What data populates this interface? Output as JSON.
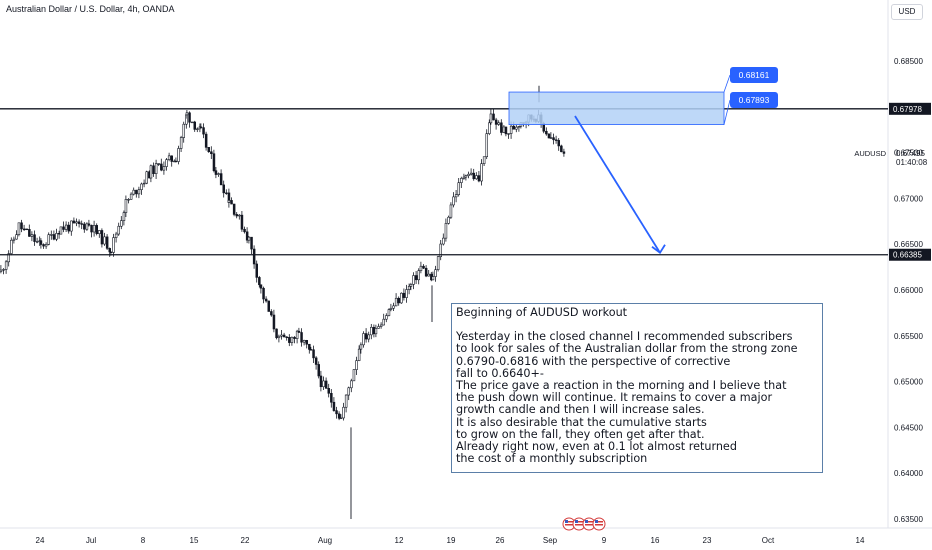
{
  "header": {
    "title": "Australian Dollar / U.S. Dollar, 4h, OANDA",
    "currency_label": "USD"
  },
  "price_axis": {
    "ticks": [
      "0.68500",
      "0.68000",
      "0.67500",
      "0.67000",
      "0.66500",
      "0.66000",
      "0.65500",
      "0.65000",
      "0.64500",
      "0.64000",
      "0.63500"
    ],
    "level_labels": [
      {
        "name": "upper-level",
        "value": 0.67978,
        "label": "0.67978"
      },
      {
        "name": "lower-level",
        "value": 0.66385,
        "label": "0.66385"
      }
    ],
    "current": {
      "symbol": "AUDUSD",
      "price": "0.67495",
      "countdown": "01:40:08"
    }
  },
  "time_axis": {
    "ticks": [
      "24",
      "Jul",
      "8",
      "15",
      "22",
      "Aug",
      "12",
      "19",
      "26",
      "Sep",
      "9",
      "16",
      "23",
      "Oct",
      "14"
    ]
  },
  "zone": {
    "top_label": "0.68161",
    "bottom_label": "0.67893",
    "top_value": 0.68161,
    "bottom_value": 0.67893,
    "fill_color": "#b3d1f7",
    "label_color": "#2962ff"
  },
  "note": {
    "title": "Beginning of AUDUSD workout",
    "lines": [
      "Yesterday in the closed channel I recommended subscribers",
      "to look for sales of the Australian dollar from the strong zone",
      "0.6790-0.6816 with the perspective of corrective",
      "fall to 0.6640+-",
      "The price gave a reaction in the morning and I believe that",
      "the push down will continue. It remains to cover a major",
      "growth candle and then I will increase sales.",
      "It is also desirable that the cumulative starts",
      "to grow on the fall, they often get after that.",
      "Already right now, even at 0.1 lot almost returned",
      "the cost of a monthly subscription"
    ]
  },
  "colors": {
    "candles": "#131722",
    "level_lines": "#131722",
    "arrow": "#2962ff"
  },
  "chart_data": {
    "type": "candlestick",
    "title": "Australian Dollar / U.S. Dollar, 4h, OANDA",
    "symbol": "AUDUSD",
    "timeframe": "4h",
    "ylim": [
      0.6345,
      0.6875
    ],
    "x_ticks": [
      "24",
      "Jul",
      "8",
      "15",
      "22",
      "Aug",
      "12",
      "19",
      "26",
      "Sep",
      "9",
      "16",
      "23",
      "Oct",
      "14"
    ],
    "horizontal_levels": [
      0.67978,
      0.66385
    ],
    "zone": [
      0.67893,
      0.68161
    ],
    "arrow": {
      "from": 0.679,
      "to": 0.66385
    },
    "close_path": [
      {
        "date": "Jun 20",
        "close": 0.662
      },
      {
        "date": "Jun 22",
        "close": 0.667
      },
      {
        "date": "Jun 26",
        "close": 0.6648
      },
      {
        "date": "Jun 28",
        "close": 0.6668
      },
      {
        "date": "Jul 1",
        "close": 0.6672
      },
      {
        "date": "Jul 3",
        "close": 0.6645
      },
      {
        "date": "Jul 5",
        "close": 0.6695
      },
      {
        "date": "Jul 8",
        "close": 0.673
      },
      {
        "date": "Jul 10",
        "close": 0.6745
      },
      {
        "date": "Jul 11",
        "close": 0.6792
      },
      {
        "date": "Jul 15",
        "close": 0.6772
      },
      {
        "date": "Jul 17",
        "close": 0.673
      },
      {
        "date": "Jul 19",
        "close": 0.67
      },
      {
        "date": "Jul 22",
        "close": 0.6655
      },
      {
        "date": "Jul 24",
        "close": 0.66
      },
      {
        "date": "Jul 26",
        "close": 0.6545
      },
      {
        "date": "Jul 29",
        "close": 0.655
      },
      {
        "date": "Jul 31",
        "close": 0.653
      },
      {
        "date": "Aug 2",
        "close": 0.65
      },
      {
        "date": "Aug 5",
        "close": 0.646
      },
      {
        "date": "Aug 7",
        "close": 0.6545
      },
      {
        "date": "Aug 9",
        "close": 0.656
      },
      {
        "date": "Aug 12",
        "close": 0.658
      },
      {
        "date": "Aug 14",
        "close": 0.6605
      },
      {
        "date": "Aug 15",
        "close": 0.6625
      },
      {
        "date": "Aug 16",
        "close": 0.661
      },
      {
        "date": "Aug 19",
        "close": 0.6695
      },
      {
        "date": "Aug 21",
        "close": 0.673
      },
      {
        "date": "Aug 22",
        "close": 0.672
      },
      {
        "date": "Aug 23",
        "close": 0.679
      },
      {
        "date": "Aug 26",
        "close": 0.677
      },
      {
        "date": "Aug 28",
        "close": 0.6785
      },
      {
        "date": "Aug 29",
        "close": 0.679
      },
      {
        "date": "Aug 30",
        "close": 0.6765
      },
      {
        "date": "Sep 2",
        "close": 0.675
      }
    ],
    "extremes": [
      {
        "label": "low",
        "value": 0.635
      },
      {
        "label": "high",
        "value": 0.6823
      }
    ]
  }
}
